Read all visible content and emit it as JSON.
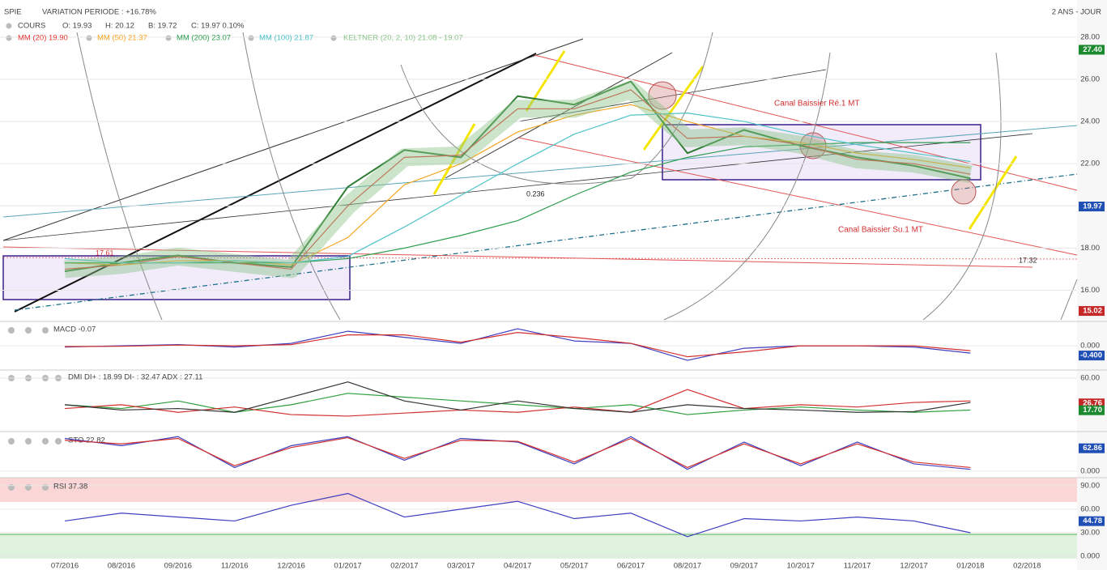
{
  "chart_data": [
    {
      "type": "line",
      "title": "SPIE",
      "subtitle": "VARIATION PERIODE : +16.78%",
      "period": "2 ANS - JOUR",
      "ohlc": [
        "O: 19.93",
        "H: 20.12",
        "B: 19.72",
        "C: 19.97 0.10%"
      ],
      "categories": [
        "07/2016",
        "08/2016",
        "09/2016",
        "11/2016",
        "12/2016",
        "01/2017",
        "02/2017",
        "03/2017",
        "04/2017",
        "05/2017",
        "06/2017",
        "08/2017",
        "09/2017",
        "10/2017",
        "11/2017",
        "12/2017",
        "01/2018",
        "02/2018"
      ],
      "series": [
        {
          "name": "COURS",
          "color": "#2e7d32",
          "values": [
            16.9,
            17.3,
            17.65,
            17.3,
            17.1,
            20.9,
            22.65,
            22.3,
            25.2,
            24.8,
            25.9,
            22.5,
            23.6,
            22.85,
            22.3,
            21.9,
            21.3,
            null
          ]
        },
        {
          "name": "MM (20) 19.90",
          "color": "#e53935",
          "values": [
            17.0,
            17.2,
            17.6,
            17.3,
            17.0,
            20.0,
            22.3,
            22.4,
            24.6,
            24.6,
            25.5,
            23.2,
            23.3,
            22.9,
            22.2,
            22.0,
            21.5,
            null
          ]
        },
        {
          "name": "MM (50) 21.37",
          "color": "#f5a623",
          "values": [
            17.3,
            17.2,
            17.4,
            17.4,
            17.2,
            18.5,
            21.0,
            22.0,
            23.5,
            24.3,
            24.8,
            24.0,
            23.3,
            23.0,
            22.5,
            22.2,
            21.8,
            null
          ]
        },
        {
          "name": "MM (200) 23.07",
          "color": "#2e9e4f",
          "values": [
            17.3,
            17.3,
            17.3,
            17.3,
            17.3,
            17.5,
            18.0,
            18.6,
            19.3,
            20.5,
            21.6,
            22.3,
            22.8,
            22.9,
            23.0,
            23.0,
            23.0,
            null
          ]
        },
        {
          "name": "MM (100) 21.87",
          "color": "#4fc3c8",
          "values": [
            17.5,
            17.3,
            17.3,
            17.4,
            17.3,
            17.6,
            19.0,
            20.5,
            22.0,
            23.4,
            24.3,
            24.4,
            24.0,
            23.4,
            22.9,
            22.5,
            22.1,
            null
          ]
        },
        {
          "name": "KELTNER (20, 2, 10) 21.08 - 19.07",
          "color": "#8bc48a",
          "values": [
            17.0,
            17.2,
            17.6,
            17.3,
            17.0,
            20.0,
            22.3,
            22.4,
            24.6,
            24.6,
            25.5,
            23.2,
            23.3,
            22.9,
            22.2,
            22.0,
            21.5,
            null
          ]
        }
      ],
      "ylim": [
        14.6,
        28.3
      ],
      "yticks": [
        {
          "value": 16,
          "label": "16.00"
        },
        {
          "value": 18,
          "label": "18.00"
        },
        {
          "value": 20,
          "label": "20.00"
        },
        {
          "value": 22,
          "label": "22.00"
        },
        {
          "value": 24,
          "label": "24.00"
        },
        {
          "value": 26,
          "label": "26.00"
        },
        {
          "value": 28,
          "label": "28.00"
        }
      ],
      "badges": [
        {
          "value": 27.4,
          "label": "27.40",
          "color": "#1b8a2f"
        },
        {
          "value": 19.97,
          "label": "19.97",
          "color": "#1f4fb5"
        },
        {
          "value": 15.02,
          "label": "15.02",
          "color": "#c62828"
        }
      ],
      "annotations": [
        "Canal Baissier Ré.1 MT",
        "Canal Baissier Su.1 MT",
        "0.236",
        "17.61",
        "17.32"
      ],
      "grid": true
    },
    {
      "type": "line",
      "title": "MACD -0.07",
      "series": [
        {
          "color": "#3f3fbf",
          "values": [
            -0.05,
            0.0,
            0.05,
            -0.05,
            0.1,
            0.6,
            0.35,
            0.1,
            0.7,
            0.2,
            0.1,
            -0.6,
            -0.1,
            0.0,
            0.0,
            -0.05,
            -0.3,
            null
          ]
        },
        {
          "color": "#d32f2f",
          "values": [
            -0.03,
            -0.02,
            0.03,
            0.0,
            0.05,
            0.45,
            0.45,
            0.15,
            0.55,
            0.35,
            0.1,
            -0.45,
            -0.25,
            0.0,
            0.0,
            0.0,
            -0.2,
            null
          ]
        }
      ],
      "ylim": [
        -0.93,
        0.97
      ],
      "yticks": [
        {
          "value": 0,
          "label": "0.000"
        }
      ],
      "badges": [
        {
          "value": -0.4,
          "label": "-0.400",
          "color": "#1f4fb5"
        }
      ]
    },
    {
      "type": "line",
      "title": "DMI DI+ : 18.99 DI- : 32.47 ADX : 27.11",
      "series": [
        {
          "color": "#2e9e3a",
          "values": [
            25,
            20,
            30,
            15,
            25,
            40,
            35,
            30,
            25,
            20,
            25,
            12,
            18,
            22,
            18,
            15,
            18,
            null
          ]
        },
        {
          "color": "#d32f2f",
          "values": [
            20,
            25,
            15,
            22,
            12,
            10,
            14,
            18,
            15,
            22,
            15,
            45,
            20,
            25,
            22,
            28,
            30,
            null
          ]
        },
        {
          "color": "#333333",
          "values": [
            25,
            18,
            20,
            15,
            35,
            55,
            30,
            18,
            30,
            20,
            15,
            25,
            20,
            18,
            15,
            16,
            28,
            null
          ]
        }
      ],
      "ylim": [
        -5,
        67.5
      ],
      "yticks": [
        {
          "value": 60,
          "label": "60.00"
        }
      ],
      "badges": [
        {
          "value": 26.76,
          "label": "26.76",
          "color": "#c62828"
        },
        {
          "value": 17.7,
          "label": "17.70",
          "color": "#1b8a2f"
        }
      ]
    },
    {
      "type": "line",
      "title": "STO 22.82",
      "series": [
        {
          "color": "#3f3fbf",
          "values": [
            90,
            70,
            95,
            10,
            70,
            95,
            30,
            90,
            80,
            20,
            95,
            5,
            80,
            15,
            80,
            20,
            5,
            null
          ]
        },
        {
          "color": "#d32f2f",
          "values": [
            85,
            75,
            90,
            15,
            65,
            92,
            35,
            85,
            82,
            25,
            90,
            10,
            75,
            20,
            75,
            25,
            10,
            null
          ]
        }
      ],
      "ylim": [
        -18,
        100
      ],
      "yticks": [
        {
          "value": 0,
          "label": "0.000"
        }
      ],
      "badges": [
        {
          "value": 62.86,
          "label": "62.86",
          "color": "#1f4fb5"
        }
      ]
    },
    {
      "type": "line",
      "title": "RSI 37.38",
      "series": [
        {
          "color": "#3f3fbf",
          "values": [
            45,
            55,
            50,
            45,
            65,
            80,
            50,
            60,
            70,
            48,
            55,
            25,
            48,
            45,
            50,
            45,
            30,
            null
          ]
        }
      ],
      "ylim": [
        -3,
        97
      ],
      "yticks": [
        {
          "value": 0,
          "label": "0.000"
        },
        {
          "value": 30,
          "label": "30.00"
        },
        {
          "value": 60,
          "label": "60.00"
        },
        {
          "value": 90,
          "label": "90.00"
        }
      ],
      "badges": [
        {
          "value": 44.78,
          "label": "44.78",
          "color": "#1f4fb5"
        }
      ]
    }
  ]
}
